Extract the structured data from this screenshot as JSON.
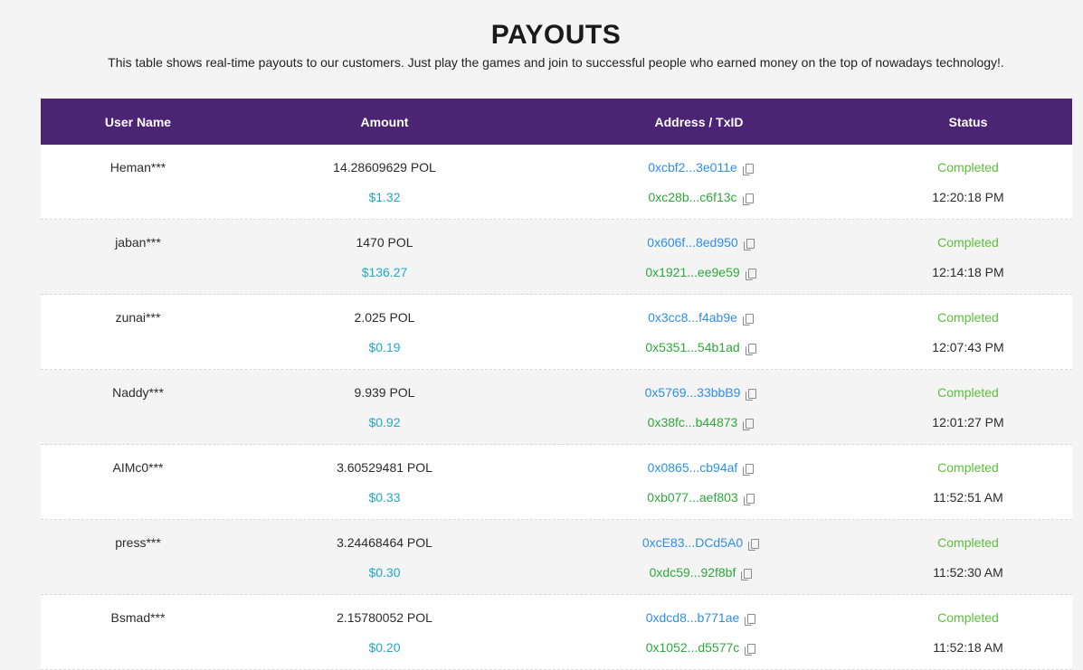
{
  "header": {
    "title": "PAYOUTS",
    "subtitle": "This table shows real-time payouts to our customers. Just play the games and join to successful people who earned money on the top of nowadays technology!."
  },
  "table": {
    "columns": [
      "User Name",
      "Amount",
      "Address / TxID",
      "Status"
    ],
    "rows": [
      {
        "user": "Heman***",
        "amount": "14.28609629 POL",
        "usd": "$1.32",
        "address": "0xcbf2...3e011e",
        "txid": "0xc28b...c6f13c",
        "status": "Completed",
        "time": "12:20:18 PM"
      },
      {
        "user": "jaban***",
        "amount": "1470 POL",
        "usd": "$136.27",
        "address": "0x606f...8ed950",
        "txid": "0x1921...ee9e59",
        "status": "Completed",
        "time": "12:14:18 PM"
      },
      {
        "user": "zunai***",
        "amount": "2.025 POL",
        "usd": "$0.19",
        "address": "0x3cc8...f4ab9e",
        "txid": "0x5351...54b1ad",
        "status": "Completed",
        "time": "12:07:43 PM"
      },
      {
        "user": "Naddy***",
        "amount": "9.939 POL",
        "usd": "$0.92",
        "address": "0x5769...33bbB9",
        "txid": "0x38fc...b44873",
        "status": "Completed",
        "time": "12:01:27 PM"
      },
      {
        "user": "AIMc0***",
        "amount": "3.60529481 POL",
        "usd": "$0.33",
        "address": "0x0865...cb94af",
        "txid": "0xb077...aef803",
        "status": "Completed",
        "time": "11:52:51 AM"
      },
      {
        "user": "press***",
        "amount": "3.24468464 POL",
        "usd": "$0.30",
        "address": "0xcE83...DCd5A0",
        "txid": "0xdc59...92f8bf",
        "status": "Completed",
        "time": "11:52:30 AM"
      },
      {
        "user": "Bsmad***",
        "amount": "2.15780052 POL",
        "usd": "$0.20",
        "address": "0xdcd8...b771ae",
        "txid": "0x1052...d5577c",
        "status": "Completed",
        "time": "11:52:18 AM"
      }
    ]
  },
  "icons": {
    "copy": "copy-icon"
  },
  "colors": {
    "header_bg": "#4b2474",
    "usd": "#22a8c7",
    "address": "#2f8ee8",
    "txid": "#2da83a",
    "status": "#5bbf3a"
  }
}
